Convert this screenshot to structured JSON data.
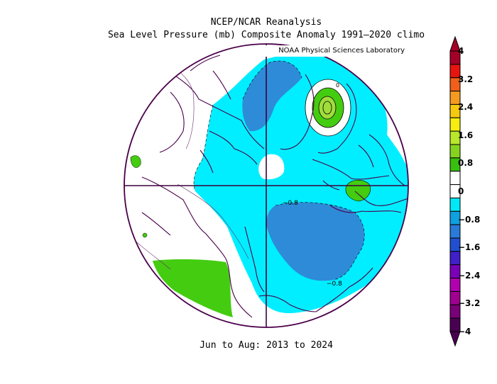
{
  "header": {
    "title_line1": "NCEP/NCAR Reanalysis",
    "title_line2": "Sea Level Pressure (mb) Composite Anomaly 1991–2020 climo",
    "credit": "NOAA Physical Sciences Laboratory"
  },
  "footer": {
    "period": "Jun to Aug: 2013 to 2024"
  },
  "contour_labels": {
    "label_a": "−0.8",
    "label_b": "−0.8",
    "label_c": "0"
  },
  "colorbar": {
    "ticks": [
      "4",
      "3.2",
      "2.4",
      "1.6",
      "0.8",
      "0",
      "−0.8",
      "−1.6",
      "−2.4",
      "−3.2",
      "−4"
    ],
    "colors": [
      "#a50026",
      "#e8140f",
      "#f0601a",
      "#f59a20",
      "#f7c810",
      "#f5ee10",
      "#b8e82a",
      "#86d420",
      "#38c010",
      "#ffffff",
      "#ffffff",
      "#00e8f8",
      "#0fa0e0",
      "#2a7ad8",
      "#2050d0",
      "#4020c8",
      "#7a00b8",
      "#b000b0",
      "#a00090",
      "#7a0078",
      "#4a0052"
    ]
  },
  "map": {
    "projection": "north-polar-stereographic",
    "fill_colors": {
      "neutral": "#ffffff",
      "neg_0_8": "#00eeff",
      "neg_1_6": "#2e8bd8",
      "pos_0_8": "#44cc11",
      "pos_1_6": "#a0dc3c",
      "pos_2_4": "#f0e810"
    }
  }
}
